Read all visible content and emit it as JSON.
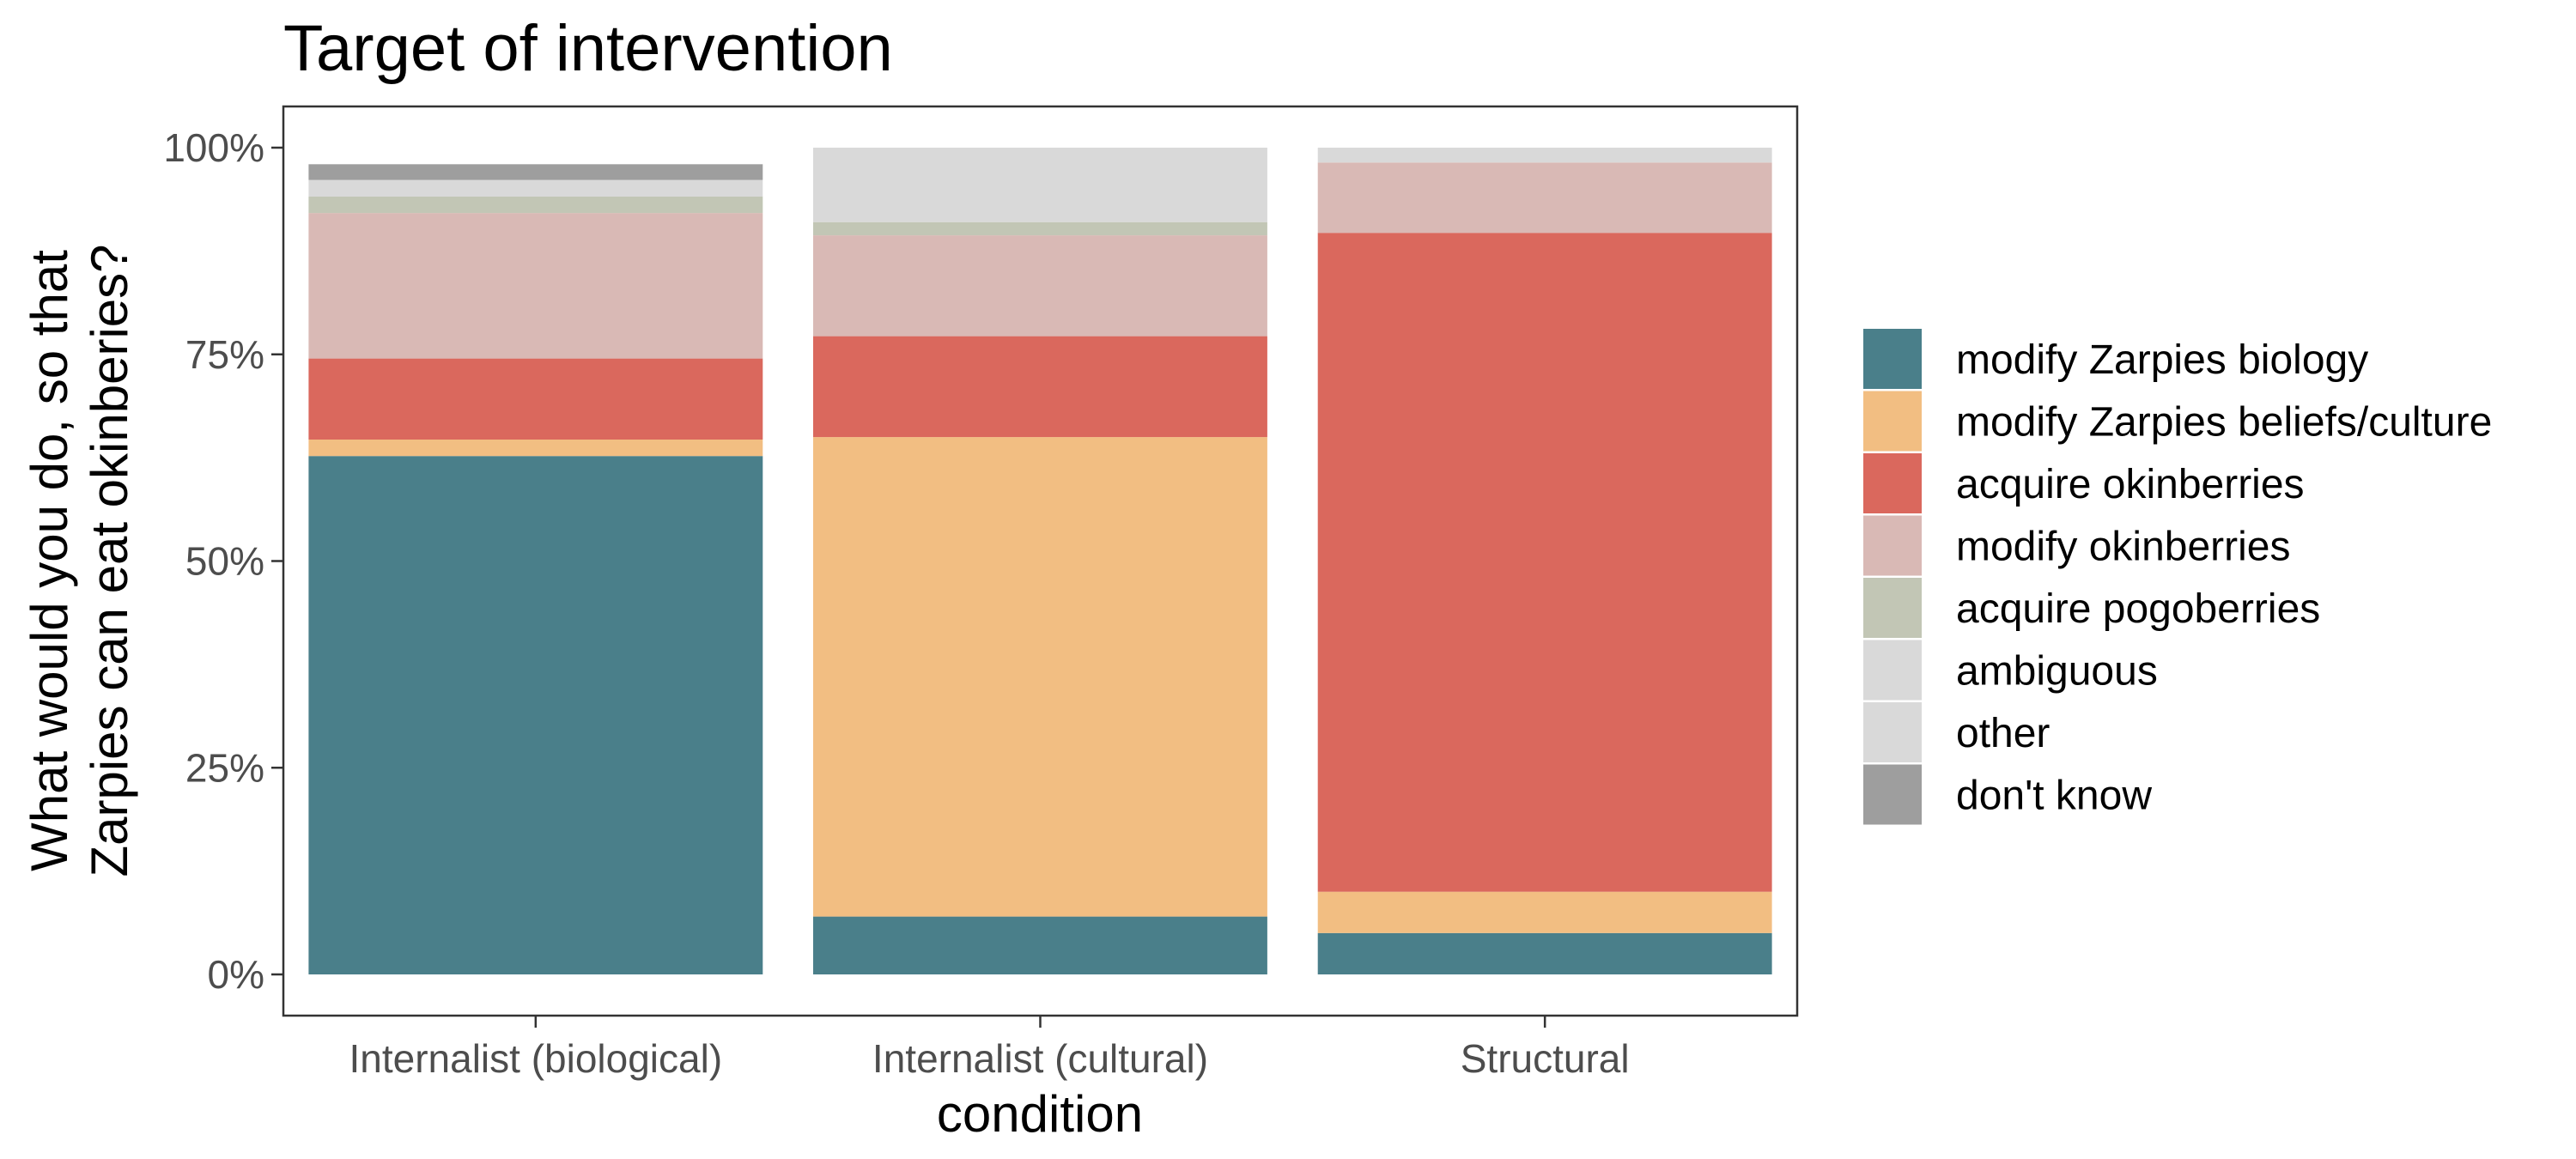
{
  "chart_data": {
    "type": "bar",
    "stacked": true,
    "normalized": true,
    "title": "Target of intervention",
    "xlabel": "condition",
    "ylabel_lines": [
      "What would you do, so that",
      "Zarpies can eat okinberies?"
    ],
    "categories": [
      "Internalist (biological)",
      "Internalist (cultural)",
      "Structural"
    ],
    "ylim": [
      0,
      1
    ],
    "y_ticks": [
      {
        "value": 0,
        "label": "0%"
      },
      {
        "value": 0.25,
        "label": "25%"
      },
      {
        "value": 0.5,
        "label": "50%"
      },
      {
        "value": 0.75,
        "label": "75%"
      },
      {
        "value": 1,
        "label": "100%"
      }
    ],
    "grid": false,
    "legend_position": "right",
    "series": [
      {
        "name": "modify Zarpies biology",
        "color": "#4a7f8a",
        "values": [
          0.627,
          0.07,
          0.05
        ]
      },
      {
        "name": "modify Zarpies beliefs/culture",
        "color": "#f2be82",
        "values": [
          0.02,
          0.58,
          0.05
        ]
      },
      {
        "name": "acquire okinberries",
        "color": "#da685d",
        "values": [
          0.098,
          0.122,
          0.797
        ]
      },
      {
        "name": "modify okinberries",
        "color": "#d9b9b5",
        "values": [
          0.176,
          0.122,
          0.085
        ]
      },
      {
        "name": "acquire pogoberries",
        "color": "#c2c6b5",
        "values": [
          0.02,
          0.016,
          0.0
        ]
      },
      {
        "name": "ambiguous",
        "color": "#d9d9d9",
        "values": [
          0.02,
          0.09,
          0.018
        ]
      },
      {
        "name": "other",
        "color": "#d9d9d9",
        "values": [
          0.0,
          0.0,
          0.0
        ]
      },
      {
        "name": "don't know",
        "color": "#9e9e9e",
        "values": [
          0.019,
          0.0,
          0.0
        ]
      }
    ]
  }
}
